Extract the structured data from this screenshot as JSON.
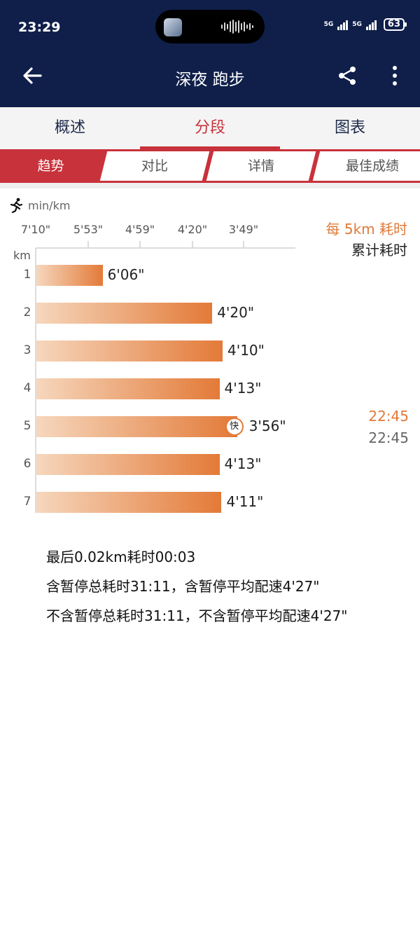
{
  "status": {
    "time": "23:29",
    "net1": "5G",
    "net2": "5G",
    "battery": "63"
  },
  "header": {
    "title": "深夜 跑步",
    "back_icon": "arrow-left-icon",
    "share_icon": "share-icon",
    "more_icon": "more-vertical-icon"
  },
  "tabs": [
    {
      "label": "概述",
      "active": false
    },
    {
      "label": "分段",
      "active": true
    },
    {
      "label": "图表",
      "active": false
    }
  ],
  "subtabs": [
    {
      "label": "趋势",
      "active": true
    },
    {
      "label": "对比",
      "active": false
    },
    {
      "label": "详情",
      "active": false
    },
    {
      "label": "最佳成绩",
      "active": false
    }
  ],
  "chart_data": {
    "type": "bar",
    "orientation": "horizontal",
    "unit_label": "min/km",
    "row_axis_label": "km",
    "x_ticks": [
      "7'10\"",
      "5'53\"",
      "4'59\"",
      "4'20\"",
      "3'49\""
    ],
    "categories": [
      "1",
      "2",
      "3",
      "4",
      "5",
      "6",
      "7"
    ],
    "values": [
      "6'06\"",
      "4'20\"",
      "4'10\"",
      "4'13\"",
      "3'56\"",
      "4'13\"",
      "4'11\""
    ],
    "fastest_index": 4,
    "fastest_label": "快",
    "legend": {
      "split_label": "每 5km 耗时",
      "cumulative_label": "累计耗时"
    },
    "five_km_split": "22:45",
    "five_km_cumulative": "22:45",
    "colors": {
      "bar_start": "#f6d7bd",
      "bar_end": "#e37a38",
      "accent": "#e07a3a"
    }
  },
  "summary": {
    "line1": "最后0.02km耗时00:03",
    "line2": "含暂停总耗时31:11，含暂停平均配速4'27\"",
    "line3": "不含暂停总耗时31:11，不含暂停平均配速4'27\""
  }
}
